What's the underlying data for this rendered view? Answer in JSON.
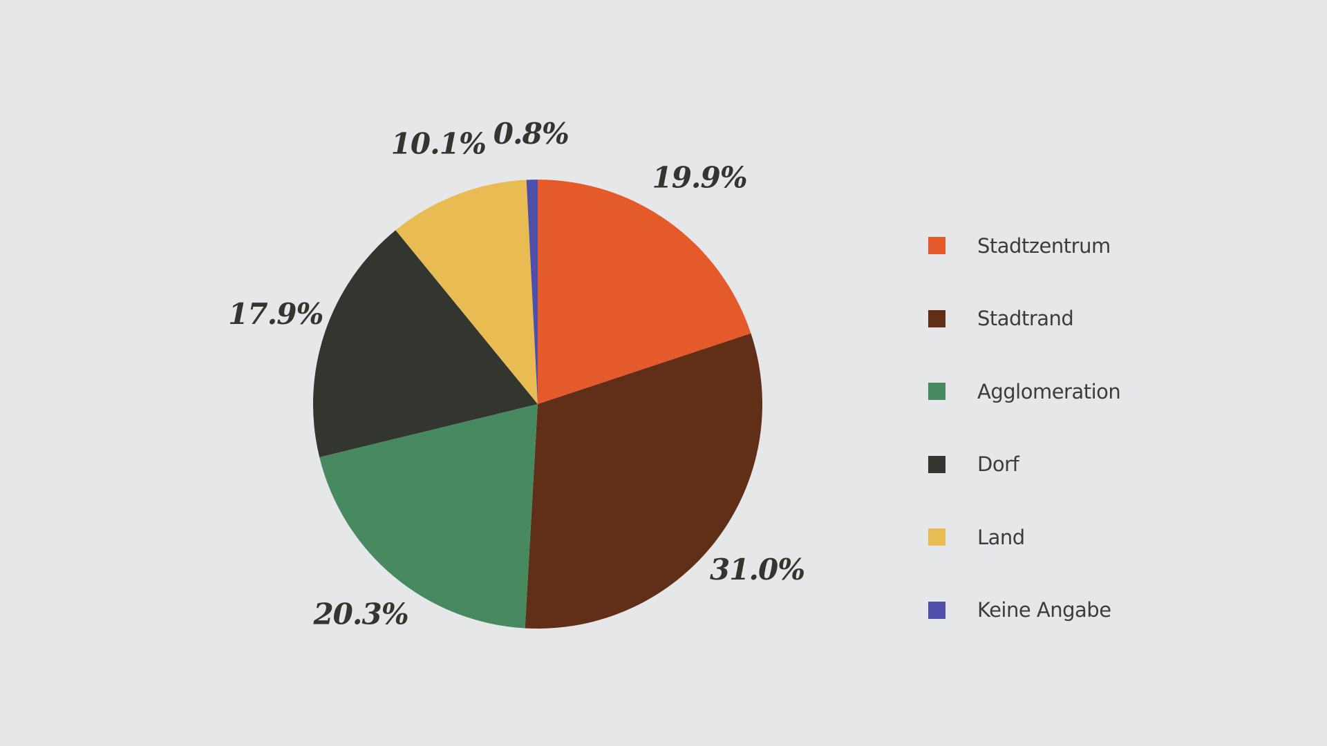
{
  "chart_data": {
    "type": "pie",
    "title": "",
    "slices": [
      {
        "name": "Stadtzentrum",
        "value": 19.9,
        "label": "19.9%",
        "color": "#e55a2b"
      },
      {
        "name": "Stadtrand",
        "value": 31.0,
        "label": "31.0%",
        "color": "#612e18"
      },
      {
        "name": "Agglomeration",
        "value": 20.3,
        "label": "20.3%",
        "color": "#478a5f"
      },
      {
        "name": "Dorf",
        "value": 17.9,
        "label": "17.9%",
        "color": "#33352f"
      },
      {
        "name": "Land",
        "value": 10.1,
        "label": "10.1%",
        "color": "#e8bb53"
      },
      {
        "name": "Keine Angabe",
        "value": 0.8,
        "label": "0.8%",
        "color": "#4d4fa8"
      }
    ],
    "start_angle_deg": 0,
    "direction": "clockwise",
    "legend_position": "right"
  }
}
